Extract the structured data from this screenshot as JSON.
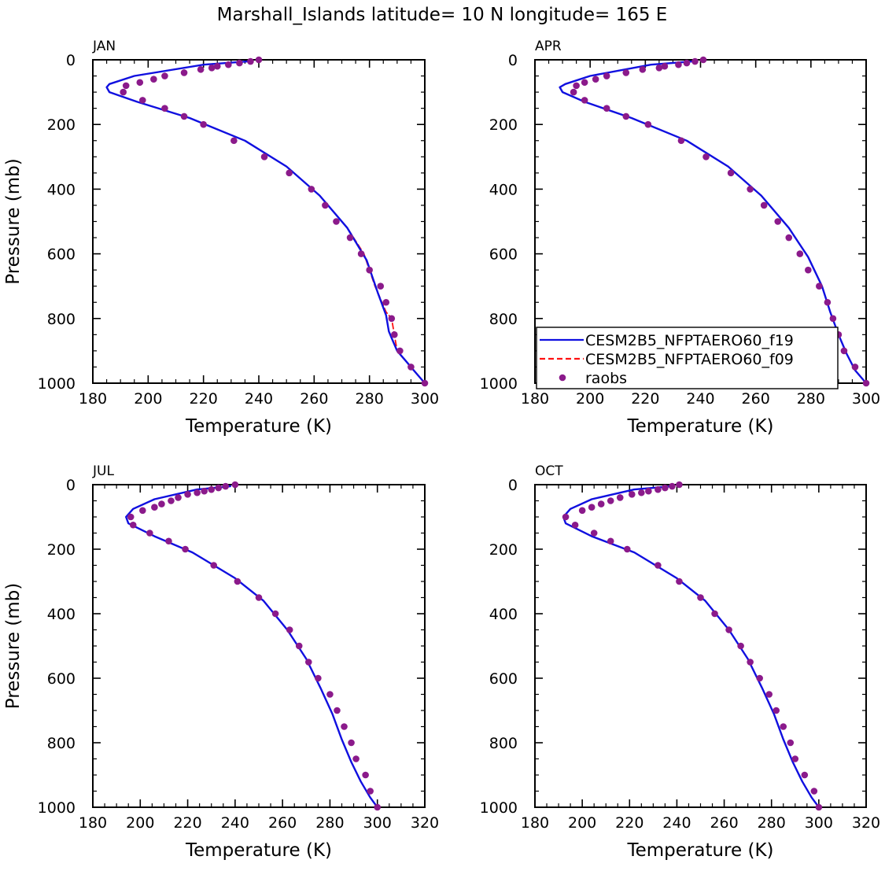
{
  "figure": {
    "title": "Marshall_Islands  latitude=  10 N longitude=  165 E"
  },
  "colors": {
    "f19": "#1010e0",
    "f09": "#ff1010",
    "raobs": "#8b1a8b",
    "axis": "#000000"
  },
  "legend": {
    "panel": "APR",
    "entries": [
      {
        "label": "CESM2B5_NFPTAERO60_f19",
        "style": "solid-line",
        "series": "f19"
      },
      {
        "label": "CESM2B5_NFPTAERO60_f09",
        "style": "dashed-line",
        "series": "f09"
      },
      {
        "label": "raobs",
        "style": "dot",
        "series": "raobs"
      }
    ]
  },
  "chart_data": [
    {
      "type": "line",
      "panel": "JAN",
      "title": "JAN",
      "xlabel": "Temperature (K)",
      "ylabel": "Pressure (mb)",
      "xlim": [
        180,
        300
      ],
      "ylim": [
        1000,
        0
      ],
      "xticks": [
        180,
        200,
        220,
        240,
        260,
        280,
        300
      ],
      "yticks": [
        0,
        200,
        400,
        600,
        800,
        1000
      ],
      "series": [
        {
          "name": "CESM2B5_NFPTAERO60_f19",
          "key": "f19",
          "x": [
            236,
            220,
            195,
            186,
            185,
            186,
            196,
            215,
            235,
            250,
            262,
            272,
            279,
            283,
            286,
            287,
            288,
            289,
            290,
            293,
            296,
            300
          ],
          "y": [
            5,
            15,
            50,
            75,
            85,
            100,
            130,
            180,
            250,
            330,
            420,
            520,
            620,
            720,
            790,
            840,
            860,
            880,
            900,
            930,
            960,
            1000
          ]
        },
        {
          "name": "CESM2B5_NFPTAERO60_f09",
          "key": "f09",
          "x": [
            236,
            220,
            195,
            186,
            185,
            186,
            196,
            215,
            235,
            250,
            262,
            272,
            278,
            282,
            286,
            288,
            289,
            290,
            293,
            296,
            300
          ],
          "y": [
            5,
            15,
            50,
            75,
            85,
            100,
            130,
            180,
            250,
            330,
            420,
            520,
            600,
            700,
            780,
            800,
            850,
            900,
            930,
            960,
            1000
          ]
        },
        {
          "name": "raobs",
          "key": "raobs",
          "x": [
            240,
            237,
            233,
            229,
            225,
            223,
            219,
            213,
            206,
            202,
            197,
            192,
            191,
            198,
            206,
            213,
            220,
            231,
            242,
            251,
            259,
            264,
            268,
            273,
            277,
            280,
            284,
            286,
            288,
            289,
            291,
            295,
            300
          ],
          "y": [
            0,
            5,
            10,
            15,
            20,
            25,
            30,
            40,
            50,
            60,
            70,
            80,
            100,
            125,
            150,
            175,
            200,
            250,
            300,
            350,
            400,
            450,
            500,
            550,
            600,
            650,
            700,
            750,
            800,
            850,
            900,
            950,
            1000
          ]
        }
      ]
    },
    {
      "type": "line",
      "panel": "APR",
      "title": "APR",
      "xlabel": "Temperature (K)",
      "ylabel": "",
      "xlim": [
        180,
        300
      ],
      "ylim": [
        1000,
        0
      ],
      "xticks": [
        180,
        200,
        220,
        240,
        260,
        280,
        300
      ],
      "yticks": [
        0,
        200,
        400,
        600,
        800,
        1000
      ],
      "series": [
        {
          "name": "CESM2B5_NFPTAERO60_f19",
          "key": "f19",
          "x": [
            237,
            222,
            200,
            191,
            189,
            190,
            198,
            215,
            235,
            250,
            262,
            272,
            279,
            284,
            287,
            290,
            293,
            296,
            300
          ],
          "y": [
            5,
            15,
            50,
            75,
            85,
            100,
            130,
            180,
            250,
            330,
            420,
            520,
            610,
            700,
            780,
            850,
            910,
            960,
            1000
          ]
        },
        {
          "name": "CESM2B5_NFPTAERO60_f09",
          "key": "f09",
          "x": [
            237,
            222,
            200,
            191,
            189,
            190,
            198,
            215,
            235,
            250,
            262,
            272,
            279,
            284,
            287,
            290,
            293,
            296,
            300
          ],
          "y": [
            5,
            15,
            50,
            75,
            85,
            100,
            130,
            180,
            250,
            330,
            420,
            520,
            610,
            700,
            780,
            850,
            910,
            960,
            1000
          ]
        },
        {
          "name": "raobs",
          "key": "raobs",
          "x": [
            241,
            238,
            235,
            232,
            227,
            225,
            219,
            213,
            206,
            202,
            198,
            195,
            194,
            198,
            206,
            213,
            221,
            233,
            242,
            251,
            258,
            263,
            268,
            272,
            276,
            279,
            283,
            286,
            288,
            290,
            292,
            296,
            300
          ],
          "y": [
            0,
            5,
            10,
            15,
            20,
            25,
            30,
            40,
            50,
            60,
            70,
            80,
            100,
            125,
            150,
            175,
            200,
            250,
            300,
            350,
            400,
            450,
            500,
            550,
            600,
            650,
            700,
            750,
            800,
            850,
            900,
            950,
            1000
          ]
        }
      ]
    },
    {
      "type": "line",
      "panel": "JUL",
      "title": "JUL",
      "xlabel": "Temperature (K)",
      "ylabel": "Pressure (mb)",
      "xlim": [
        180,
        320
      ],
      "ylim": [
        1000,
        0
      ],
      "xticks": [
        180,
        200,
        220,
        240,
        260,
        280,
        300,
        320
      ],
      "yticks": [
        0,
        200,
        400,
        600,
        800,
        1000
      ],
      "series": [
        {
          "name": "CESM2B5_NFPTAERO60_f19",
          "key": "f19",
          "x": [
            238,
            224,
            206,
            197,
            194,
            195,
            206,
            222,
            240,
            252,
            262,
            270,
            276,
            281,
            285,
            289,
            293,
            297,
            300
          ],
          "y": [
            5,
            15,
            45,
            75,
            100,
            120,
            160,
            210,
            290,
            360,
            450,
            540,
            630,
            710,
            790,
            860,
            920,
            970,
            1000
          ]
        },
        {
          "name": "CESM2B5_NFPTAERO60_f09",
          "key": "f09",
          "x": [
            238,
            224,
            206,
            197,
            194,
            195,
            206,
            222,
            240,
            252,
            262,
            270,
            276,
            281,
            285,
            289,
            293,
            297,
            300
          ],
          "y": [
            5,
            15,
            45,
            75,
            100,
            120,
            160,
            210,
            290,
            360,
            450,
            540,
            630,
            710,
            790,
            860,
            920,
            970,
            1000
          ]
        },
        {
          "name": "raobs",
          "key": "raobs",
          "x": [
            240,
            236,
            233,
            230,
            227,
            224,
            220,
            216,
            213,
            209,
            206,
            201,
            196,
            197,
            204,
            212,
            219,
            231,
            241,
            250,
            257,
            263,
            267,
            271,
            275,
            280,
            283,
            286,
            289,
            291,
            295,
            297,
            300
          ],
          "y": [
            0,
            5,
            10,
            15,
            20,
            25,
            30,
            40,
            50,
            60,
            70,
            80,
            100,
            125,
            150,
            175,
            200,
            250,
            300,
            350,
            400,
            450,
            500,
            550,
            600,
            650,
            700,
            750,
            800,
            850,
            900,
            950,
            1000
          ]
        }
      ]
    },
    {
      "type": "line",
      "panel": "OCT",
      "title": "OCT",
      "xlabel": "Temperature (K)",
      "ylabel": "",
      "xlim": [
        180,
        320
      ],
      "ylim": [
        1000,
        0
      ],
      "xticks": [
        180,
        200,
        220,
        240,
        260,
        280,
        300,
        320
      ],
      "yticks": [
        0,
        200,
        400,
        600,
        800,
        1000
      ],
      "series": [
        {
          "name": "CESM2B5_NFPTAERO60_f19",
          "key": "f19",
          "x": [
            238,
            222,
            204,
            195,
            192,
            193,
            204,
            222,
            240,
            252,
            262,
            270,
            276,
            281,
            285,
            289,
            293,
            297,
            300
          ],
          "y": [
            5,
            15,
            45,
            75,
            100,
            120,
            160,
            210,
            290,
            360,
            450,
            540,
            630,
            710,
            790,
            860,
            920,
            970,
            1000
          ]
        },
        {
          "name": "CESM2B5_NFPTAERO60_f09",
          "key": "f09",
          "x": [
            238,
            222,
            204,
            195,
            192,
            193,
            204,
            222,
            240,
            252,
            262,
            270,
            276,
            281,
            285,
            289,
            293,
            297,
            300
          ],
          "y": [
            5,
            15,
            45,
            75,
            100,
            120,
            160,
            210,
            290,
            360,
            450,
            540,
            630,
            710,
            790,
            860,
            920,
            970,
            1000
          ]
        },
        {
          "name": "raobs",
          "key": "raobs",
          "x": [
            241,
            238,
            235,
            232,
            228,
            225,
            221,
            216,
            212,
            208,
            204,
            200,
            193,
            197,
            205,
            212,
            219,
            232,
            241,
            250,
            256,
            262,
            267,
            271,
            275,
            279,
            282,
            285,
            288,
            290,
            294,
            298,
            300
          ],
          "y": [
            0,
            5,
            10,
            15,
            20,
            25,
            30,
            40,
            50,
            60,
            70,
            80,
            100,
            125,
            150,
            175,
            200,
            250,
            300,
            350,
            400,
            450,
            500,
            550,
            600,
            650,
            700,
            750,
            800,
            850,
            900,
            950,
            1000
          ]
        }
      ]
    }
  ]
}
